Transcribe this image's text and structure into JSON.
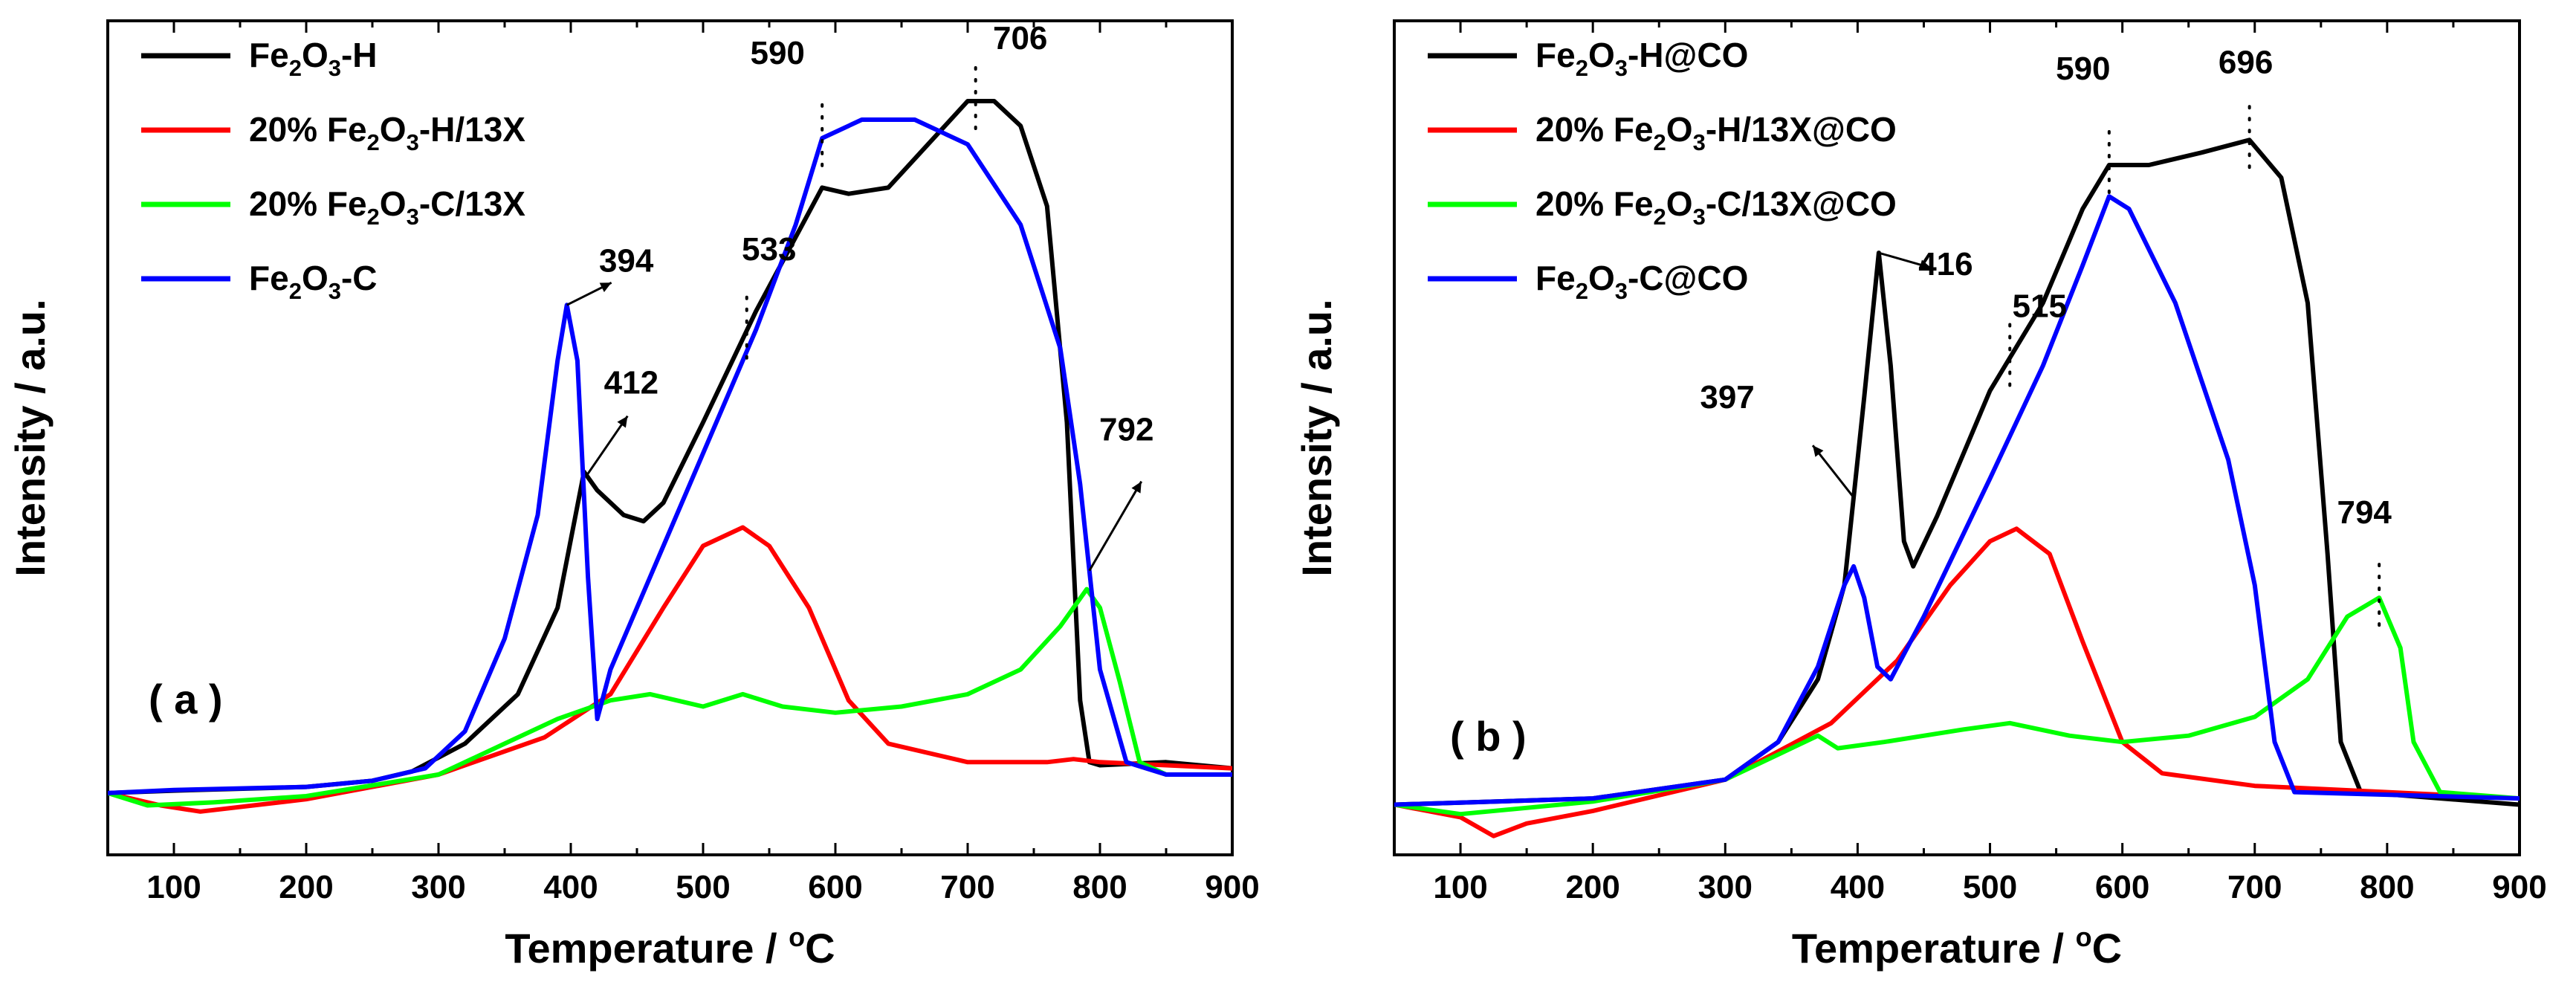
{
  "chart_data": [
    {
      "type": "line",
      "panel_label": "( a )",
      "xlabel": "Temperature / °C",
      "xlabel_parts": [
        "Temperature / ",
        "o",
        "C"
      ],
      "ylabel": "Intensity / a.u.",
      "xlim": [
        50,
        900
      ],
      "ylim": [
        -0.1,
        1.25
      ],
      "xticks": [
        100,
        200,
        300,
        400,
        500,
        600,
        700,
        800,
        900
      ],
      "grid": false,
      "legend_position": "top-left",
      "series": [
        {
          "name": "Fe2O3-H",
          "label_parts": [
            "Fe",
            "2",
            "O",
            "3",
            "-H"
          ],
          "color": "#000000",
          "points": [
            [
              50,
              0
            ],
            [
              100,
              0.004
            ],
            [
              200,
              0.01
            ],
            [
              250,
              0.02
            ],
            [
              280,
              0.035
            ],
            [
              320,
              0.08
            ],
            [
              360,
              0.16
            ],
            [
              390,
              0.3
            ],
            [
              410,
              0.52
            ],
            [
              420,
              0.49
            ],
            [
              440,
              0.45
            ],
            [
              455,
              0.44
            ],
            [
              470,
              0.47
            ],
            [
              500,
              0.6
            ],
            [
              540,
              0.78
            ],
            [
              570,
              0.9
            ],
            [
              590,
              0.98
            ],
            [
              610,
              0.97
            ],
            [
              640,
              0.98
            ],
            [
              670,
              1.05
            ],
            [
              700,
              1.12
            ],
            [
              720,
              1.12
            ],
            [
              740,
              1.08
            ],
            [
              760,
              0.95
            ],
            [
              775,
              0.6
            ],
            [
              785,
              0.15
            ],
            [
              792,
              0.05
            ],
            [
              800,
              0.045
            ],
            [
              850,
              0.05
            ],
            [
              900,
              0.04
            ]
          ]
        },
        {
          "name": "20% Fe2O3-H/13X",
          "label_parts": [
            "20% Fe",
            "2",
            "O",
            "3",
            "-H/13X"
          ],
          "color": "#ff0000",
          "points": [
            [
              50,
              0
            ],
            [
              90,
              -0.02
            ],
            [
              120,
              -0.03
            ],
            [
              200,
              -0.01
            ],
            [
              300,
              0.03
            ],
            [
              380,
              0.09
            ],
            [
              430,
              0.16
            ],
            [
              470,
              0.3
            ],
            [
              500,
              0.4
            ],
            [
              530,
              0.43
            ],
            [
              550,
              0.4
            ],
            [
              580,
              0.3
            ],
            [
              610,
              0.15
            ],
            [
              640,
              0.08
            ],
            [
              700,
              0.05
            ],
            [
              760,
              0.05
            ],
            [
              780,
              0.055
            ],
            [
              800,
              0.05
            ],
            [
              900,
              0.04
            ]
          ]
        },
        {
          "name": "20% Fe2O3-C/13X",
          "label_parts": [
            "20% Fe",
            "2",
            "O",
            "3",
            "-C/13X"
          ],
          "color": "#00ff00",
          "points": [
            [
              50,
              0
            ],
            [
              80,
              -0.02
            ],
            [
              130,
              -0.015
            ],
            [
              200,
              -0.005
            ],
            [
              300,
              0.03
            ],
            [
              350,
              0.08
            ],
            [
              390,
              0.12
            ],
            [
              430,
              0.15
            ],
            [
              460,
              0.16
            ],
            [
              480,
              0.15
            ],
            [
              500,
              0.14
            ],
            [
              530,
              0.16
            ],
            [
              560,
              0.14
            ],
            [
              600,
              0.13
            ],
            [
              650,
              0.14
            ],
            [
              700,
              0.16
            ],
            [
              740,
              0.2
            ],
            [
              770,
              0.27
            ],
            [
              790,
              0.33
            ],
            [
              800,
              0.3
            ],
            [
              815,
              0.18
            ],
            [
              830,
              0.05
            ],
            [
              850,
              0.03
            ],
            [
              900,
              0.03
            ]
          ]
        },
        {
          "name": "Fe2O3-C",
          "label_parts": [
            "Fe",
            "2",
            "O",
            "3",
            "-C"
          ],
          "color": "#0000ff",
          "points": [
            [
              50,
              0
            ],
            [
              100,
              0.005
            ],
            [
              200,
              0.01
            ],
            [
              250,
              0.02
            ],
            [
              290,
              0.04
            ],
            [
              320,
              0.1
            ],
            [
              350,
              0.25
            ],
            [
              375,
              0.45
            ],
            [
              390,
              0.7
            ],
            [
              397,
              0.79
            ],
            [
              405,
              0.7
            ],
            [
              413,
              0.35
            ],
            [
              420,
              0.12
            ],
            [
              430,
              0.2
            ],
            [
              460,
              0.35
            ],
            [
              500,
              0.55
            ],
            [
              540,
              0.75
            ],
            [
              570,
              0.92
            ],
            [
              590,
              1.06
            ],
            [
              620,
              1.09
            ],
            [
              660,
              1.09
            ],
            [
              700,
              1.05
            ],
            [
              740,
              0.92
            ],
            [
              770,
              0.72
            ],
            [
              785,
              0.5
            ],
            [
              800,
              0.2
            ],
            [
              820,
              0.05
            ],
            [
              850,
              0.03
            ],
            [
              900,
              0.03
            ]
          ]
        }
      ],
      "annotations": [
        {
          "text": "394",
          "x": 397
        },
        {
          "text": "412",
          "x": 412
        },
        {
          "text": "590",
          "x": 590
        },
        {
          "text": "706",
          "x": 706
        },
        {
          "text": "533",
          "x": 533
        },
        {
          "text": "792",
          "x": 792
        }
      ]
    },
    {
      "type": "line",
      "panel_label": "( b )",
      "xlabel": "Temperature / °C",
      "xlabel_parts": [
        "Temperature / ",
        "o",
        "C"
      ],
      "ylabel": "Intensity / a.u.",
      "xlim": [
        50,
        900
      ],
      "ylim": [
        -0.08,
        1.25
      ],
      "xticks": [
        100,
        200,
        300,
        400,
        500,
        600,
        700,
        800,
        900
      ],
      "grid": false,
      "legend_position": "top-left",
      "series": [
        {
          "name": "Fe2O3-H@CO",
          "label_parts": [
            "Fe",
            "2",
            "O",
            "3",
            "-H@CO"
          ],
          "color": "#000000",
          "points": [
            [
              50,
              0
            ],
            [
              200,
              0.01
            ],
            [
              300,
              0.04
            ],
            [
              340,
              0.1
            ],
            [
              370,
              0.2
            ],
            [
              390,
              0.35
            ],
            [
              405,
              0.65
            ],
            [
              416,
              0.88
            ],
            [
              425,
              0.7
            ],
            [
              435,
              0.42
            ],
            [
              442,
              0.38
            ],
            [
              460,
              0.46
            ],
            [
              500,
              0.66
            ],
            [
              540,
              0.8
            ],
            [
              570,
              0.95
            ],
            [
              590,
              1.02
            ],
            [
              620,
              1.02
            ],
            [
              660,
              1.04
            ],
            [
              696,
              1.06
            ],
            [
              720,
              1.0
            ],
            [
              740,
              0.8
            ],
            [
              755,
              0.4
            ],
            [
              765,
              0.1
            ],
            [
              780,
              0.02
            ],
            [
              900,
              0.0
            ]
          ]
        },
        {
          "name": "20% Fe2O3-H/13X@CO",
          "label_parts": [
            "20% Fe",
            "2",
            "O",
            "3",
            "-H/13X@CO"
          ],
          "color": "#ff0000",
          "points": [
            [
              50,
              0
            ],
            [
              100,
              -0.02
            ],
            [
              125,
              -0.05
            ],
            [
              150,
              -0.03
            ],
            [
              200,
              -0.01
            ],
            [
              300,
              0.04
            ],
            [
              380,
              0.13
            ],
            [
              430,
              0.23
            ],
            [
              470,
              0.35
            ],
            [
              500,
              0.42
            ],
            [
              520,
              0.44
            ],
            [
              545,
              0.4
            ],
            [
              570,
              0.26
            ],
            [
              600,
              0.1
            ],
            [
              630,
              0.05
            ],
            [
              700,
              0.03
            ],
            [
              800,
              0.02
            ],
            [
              900,
              0.01
            ]
          ]
        },
        {
          "name": "20% Fe2O3-C/13X@CO",
          "label_parts": [
            "20% Fe",
            "2",
            "O",
            "3",
            "-C/13X@CO"
          ],
          "color": "#00ff00",
          "points": [
            [
              50,
              0
            ],
            [
              100,
              -0.015
            ],
            [
              200,
              0.005
            ],
            [
              300,
              0.04
            ],
            [
              350,
              0.09
            ],
            [
              370,
              0.11
            ],
            [
              385,
              0.09
            ],
            [
              420,
              0.1
            ],
            [
              480,
              0.12
            ],
            [
              515,
              0.13
            ],
            [
              560,
              0.11
            ],
            [
              600,
              0.1
            ],
            [
              650,
              0.11
            ],
            [
              700,
              0.14
            ],
            [
              740,
              0.2
            ],
            [
              770,
              0.3
            ],
            [
              794,
              0.33
            ],
            [
              810,
              0.25
            ],
            [
              820,
              0.1
            ],
            [
              840,
              0.02
            ],
            [
              900,
              0.01
            ]
          ]
        },
        {
          "name": "Fe2O3-C@CO",
          "label_parts": [
            "Fe",
            "2",
            "O",
            "3",
            "-C@CO"
          ],
          "color": "#0000ff",
          "points": [
            [
              50,
              0
            ],
            [
              200,
              0.01
            ],
            [
              300,
              0.04
            ],
            [
              340,
              0.1
            ],
            [
              370,
              0.22
            ],
            [
              390,
              0.35
            ],
            [
              397,
              0.38
            ],
            [
              405,
              0.33
            ],
            [
              415,
              0.22
            ],
            [
              425,
              0.2
            ],
            [
              450,
              0.3
            ],
            [
              500,
              0.52
            ],
            [
              540,
              0.7
            ],
            [
              570,
              0.86
            ],
            [
              590,
              0.97
            ],
            [
              605,
              0.95
            ],
            [
              640,
              0.8
            ],
            [
              680,
              0.55
            ],
            [
              700,
              0.35
            ],
            [
              715,
              0.1
            ],
            [
              730,
              0.02
            ],
            [
              900,
              0.01
            ]
          ]
        }
      ],
      "annotations": [
        {
          "text": "416",
          "x": 416
        },
        {
          "text": "397",
          "x": 397
        },
        {
          "text": "515",
          "x": 515
        },
        {
          "text": "590",
          "x": 590
        },
        {
          "text": "696",
          "x": 696
        },
        {
          "text": "794",
          "x": 794
        }
      ]
    }
  ]
}
